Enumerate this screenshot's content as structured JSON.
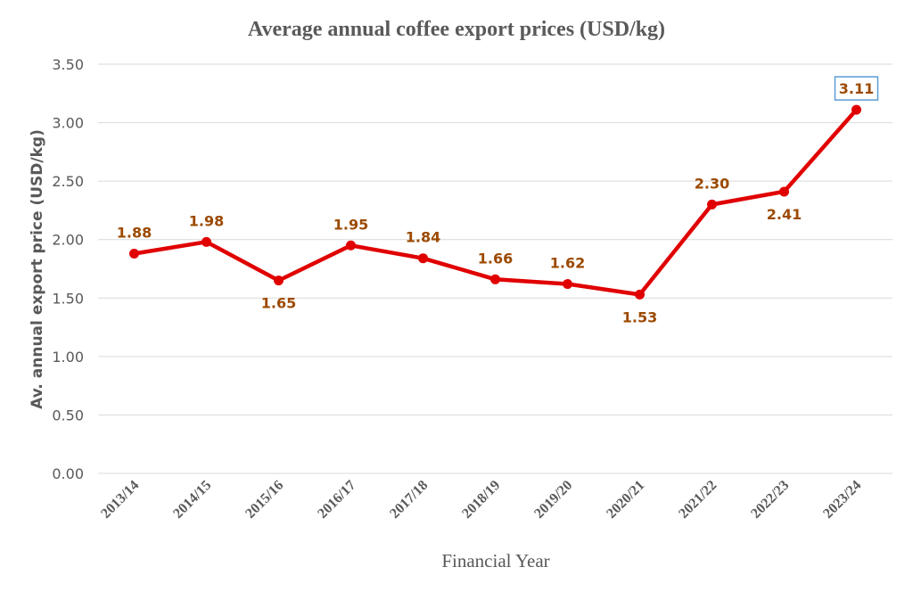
{
  "chart_data": {
    "type": "line",
    "title": "Average annual coffee export prices (USD/kg)",
    "xlabel": "Financial Year",
    "ylabel": "Av. annual export price (USD/kg)",
    "categories": [
      "2013/14",
      "2014/15",
      "2015/16",
      "2016/17",
      "2017/18",
      "2018/19",
      "2019/20",
      "2020/21",
      "2021/22",
      "2022/23",
      "2023/24"
    ],
    "series": [
      {
        "values": [
          1.88,
          1.98,
          1.65,
          1.95,
          1.84,
          1.66,
          1.62,
          1.53,
          2.3,
          2.41,
          3.11
        ],
        "data_labels": [
          "1.88",
          "1.98",
          "1.65",
          "1.95",
          "1.84",
          "1.66",
          "1.62",
          "1.53",
          "2.30",
          "2.41",
          "3.11"
        ],
        "label_placement": [
          "above",
          "above",
          "below",
          "above",
          "above",
          "above",
          "above",
          "below",
          "above",
          "below",
          "above"
        ],
        "highlighted_label_index": 10
      }
    ],
    "ylim": [
      0,
      3.5
    ],
    "yticks": [
      "0.00",
      "0.50",
      "1.00",
      "1.50",
      "2.00",
      "2.50",
      "3.00",
      "3.50"
    ],
    "grid": true,
    "legend": "none",
    "colors": {
      "line": "#e00000",
      "marker": "#e00000",
      "data_label": "#9c4a00",
      "highlight_border": "#5b9bd5",
      "gridline": "#d9d9d9",
      "axis_text": "#595959"
    }
  }
}
